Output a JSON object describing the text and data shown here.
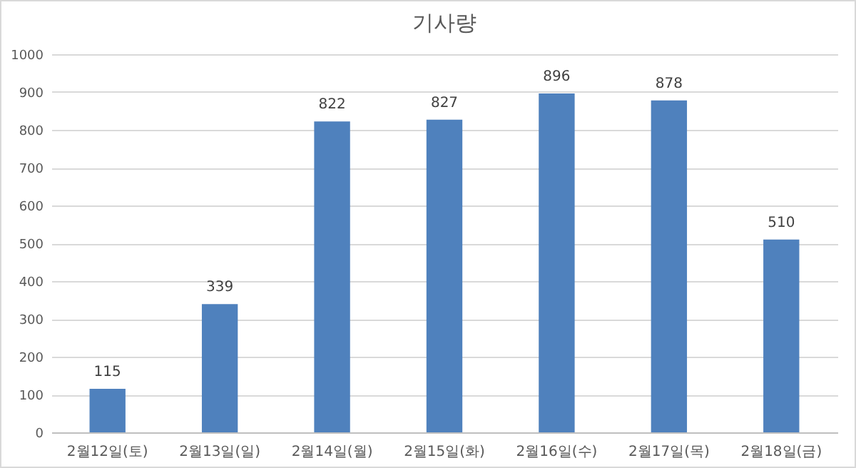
{
  "chart_data": {
    "type": "bar",
    "title": "기사량",
    "categories": [
      "2월12일(토)",
      "2월13일(일)",
      "2월14일(월)",
      "2월15일(화)",
      "2월16일(수)",
      "2월17일(목)",
      "2월18일(금)"
    ],
    "values": [
      115,
      339,
      822,
      827,
      896,
      878,
      510
    ],
    "color": "#4f81bd",
    "ylim": [
      0,
      1000
    ],
    "yticks": [
      0,
      100,
      200,
      300,
      400,
      500,
      600,
      700,
      800,
      900,
      1000
    ],
    "grid": "y",
    "data_labels": true
  }
}
